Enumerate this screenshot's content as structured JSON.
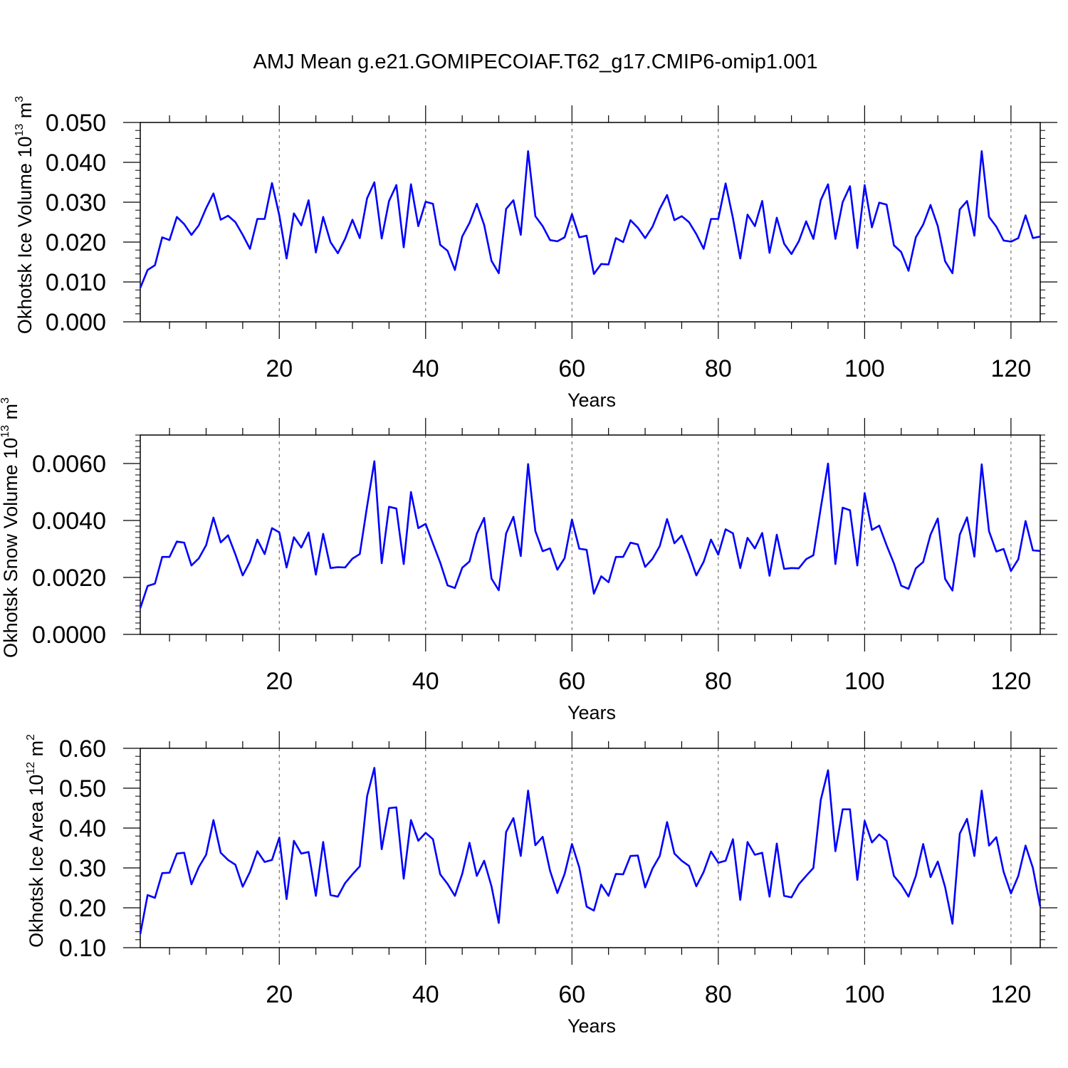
{
  "title": "AMJ Mean g.e21.GOMIPECOIAF.T62_g17.CMIP6-omip1.001",
  "colors": {
    "line": "#0000ff",
    "axis": "#000000",
    "grid": "#555555"
  },
  "chart_data": [
    {
      "type": "line",
      "ylabel_main": "Okhotsk Ice Volume 10",
      "ylabel_exp": "13",
      "ylabel_unit": " m",
      "ylabel_unit_exp": "3",
      "xlabel": "Years",
      "xlim": [
        1,
        124
      ],
      "ylim": [
        0.0,
        0.05
      ],
      "yticks": [
        0.0,
        0.01,
        0.02,
        0.03,
        0.04,
        0.05
      ],
      "yticklabels": [
        "0.000",
        "0.010",
        "0.020",
        "0.030",
        "0.040",
        "0.050"
      ],
      "yminor": 0.002,
      "xticks": [
        20,
        40,
        60,
        80,
        100,
        120
      ],
      "xticklabels": [
        "20",
        "40",
        "60",
        "80",
        "100",
        "120"
      ],
      "xminor": 5,
      "grid": "x-dashed",
      "series": [
        {
          "name": "ice_volume",
          "values": [
            0.0085,
            0.013,
            0.0142,
            0.0212,
            0.0205,
            0.0263,
            0.0245,
            0.0218,
            0.0242,
            0.0285,
            0.0322,
            0.0256,
            0.0266,
            0.025,
            0.0218,
            0.0183,
            0.0258,
            0.0258,
            0.0348,
            0.0267,
            0.0159,
            0.0272,
            0.0242,
            0.0305,
            0.0174,
            0.0263,
            0.02,
            0.0172,
            0.0208,
            0.0256,
            0.021,
            0.031,
            0.035,
            0.0209,
            0.0303,
            0.0343,
            0.0187,
            0.0345,
            0.024,
            0.0301,
            0.0296,
            0.0193,
            0.0178,
            0.013,
            0.0214,
            0.0248,
            0.0296,
            0.0243,
            0.0153,
            0.0122,
            0.0283,
            0.0305,
            0.0218,
            0.0428,
            0.0265,
            0.024,
            0.0205,
            0.0202,
            0.0212,
            0.027,
            0.0212,
            0.0216,
            0.012,
            0.0145,
            0.0144,
            0.021,
            0.02,
            0.0255,
            0.0236,
            0.021,
            0.0238,
            0.0283,
            0.0318,
            0.0255,
            0.0265,
            0.025,
            0.022,
            0.0183,
            0.0258,
            0.0258,
            0.0347,
            0.026,
            0.0159,
            0.0269,
            0.024,
            0.0303,
            0.0173,
            0.0261,
            0.0196,
            0.017,
            0.0202,
            0.0252,
            0.0208,
            0.0305,
            0.0345,
            0.0208,
            0.03,
            0.034,
            0.0185,
            0.0343,
            0.0237,
            0.0299,
            0.0294,
            0.0192,
            0.0175,
            0.0128,
            0.0212,
            0.0244,
            0.0293,
            0.024,
            0.0152,
            0.0122,
            0.0282,
            0.0303,
            0.0216,
            0.0428,
            0.0263,
            0.0239,
            0.0204,
            0.0201,
            0.021,
            0.0267,
            0.021,
            0.0214
          ]
        }
      ]
    },
    {
      "type": "line",
      "ylabel_main": "Okhotsk Snow Volume 10",
      "ylabel_exp": "13",
      "ylabel_unit": " m",
      "ylabel_unit_exp": "3",
      "xlabel": "Years",
      "xlim": [
        1,
        124
      ],
      "ylim": [
        0.0,
        0.007
      ],
      "yticks": [
        0.0,
        0.002,
        0.004,
        0.006
      ],
      "yticklabels": [
        "0.0000",
        "0.0020",
        "0.0040",
        "0.0060"
      ],
      "yminor": 0.0002,
      "xticks": [
        20,
        40,
        60,
        80,
        100,
        120
      ],
      "xticklabels": [
        "20",
        "40",
        "60",
        "80",
        "100",
        "120"
      ],
      "xminor": 5,
      "grid": "x-dashed",
      "series": [
        {
          "name": "snow_volume",
          "values": [
            0.00092,
            0.0017,
            0.00178,
            0.00272,
            0.00272,
            0.00326,
            0.00322,
            0.00242,
            0.00267,
            0.00313,
            0.0041,
            0.00323,
            0.00348,
            0.00281,
            0.00207,
            0.00255,
            0.00333,
            0.00282,
            0.00373,
            0.00358,
            0.00235,
            0.00341,
            0.00305,
            0.00358,
            0.0021,
            0.00353,
            0.00233,
            0.00236,
            0.00235,
            0.00266,
            0.00282,
            0.0045,
            0.00608,
            0.0025,
            0.00448,
            0.00442,
            0.00247,
            0.005,
            0.00373,
            0.00388,
            0.00319,
            0.00252,
            0.00172,
            0.00163,
            0.00234,
            0.00256,
            0.00354,
            0.00409,
            0.00196,
            0.00155,
            0.00354,
            0.00413,
            0.00275,
            0.00598,
            0.00363,
            0.00292,
            0.00302,
            0.00227,
            0.00268,
            0.00403,
            0.00301,
            0.00297,
            0.00143,
            0.00204,
            0.00183,
            0.00272,
            0.00272,
            0.00322,
            0.00316,
            0.00237,
            0.00265,
            0.0031,
            0.00405,
            0.0032,
            0.00347,
            0.00281,
            0.00207,
            0.00255,
            0.00333,
            0.0028,
            0.00369,
            0.00355,
            0.00233,
            0.00339,
            0.00302,
            0.00356,
            0.00206,
            0.0035,
            0.0023,
            0.00233,
            0.00232,
            0.00264,
            0.00278,
            0.00443,
            0.006,
            0.00247,
            0.00445,
            0.00436,
            0.00242,
            0.00496,
            0.00367,
            0.00382,
            0.00313,
            0.00249,
            0.00171,
            0.0016,
            0.00232,
            0.00254,
            0.0035,
            0.00407,
            0.00195,
            0.00154,
            0.0035,
            0.00411,
            0.00273,
            0.00597,
            0.00362,
            0.00291,
            0.003,
            0.00223,
            0.00264,
            0.00398,
            0.00295,
            0.00293
          ]
        }
      ]
    },
    {
      "type": "line",
      "ylabel_main": "Okhotsk Ice Area 10",
      "ylabel_exp": "12",
      "ylabel_unit": " m",
      "ylabel_unit_exp": "2",
      "xlabel": "Years",
      "xlim": [
        1,
        124
      ],
      "ylim": [
        0.1,
        0.6
      ],
      "yticks": [
        0.1,
        0.2,
        0.3,
        0.4,
        0.5,
        0.6
      ],
      "yticklabels": [
        "0.10",
        "0.20",
        "0.30",
        "0.40",
        "0.50",
        "0.60"
      ],
      "yminor": 0.02,
      "xticks": [
        20,
        40,
        60,
        80,
        100,
        120
      ],
      "xticklabels": [
        "20",
        "40",
        "60",
        "80",
        "100",
        "120"
      ],
      "xminor": 5,
      "grid": "x-dashed",
      "series": [
        {
          "name": "ice_area",
          "values": [
            0.134,
            0.232,
            0.225,
            0.287,
            0.288,
            0.336,
            0.338,
            0.259,
            0.302,
            0.333,
            0.42,
            0.338,
            0.32,
            0.308,
            0.253,
            0.29,
            0.342,
            0.315,
            0.32,
            0.376,
            0.222,
            0.368,
            0.336,
            0.34,
            0.23,
            0.365,
            0.232,
            0.228,
            0.262,
            0.284,
            0.304,
            0.48,
            0.551,
            0.347,
            0.45,
            0.452,
            0.273,
            0.42,
            0.368,
            0.388,
            0.372,
            0.284,
            0.26,
            0.23,
            0.285,
            0.363,
            0.28,
            0.318,
            0.254,
            0.162,
            0.39,
            0.425,
            0.33,
            0.494,
            0.357,
            0.378,
            0.293,
            0.237,
            0.285,
            0.36,
            0.301,
            0.203,
            0.193,
            0.258,
            0.23,
            0.285,
            0.284,
            0.33,
            0.331,
            0.251,
            0.298,
            0.33,
            0.415,
            0.336,
            0.318,
            0.305,
            0.254,
            0.29,
            0.341,
            0.313,
            0.318,
            0.372,
            0.22,
            0.365,
            0.333,
            0.338,
            0.228,
            0.361,
            0.23,
            0.226,
            0.259,
            0.28,
            0.3,
            0.47,
            0.545,
            0.342,
            0.447,
            0.447,
            0.27,
            0.418,
            0.364,
            0.384,
            0.368,
            0.28,
            0.258,
            0.228,
            0.28,
            0.36,
            0.277,
            0.316,
            0.252,
            0.16,
            0.386,
            0.423,
            0.33,
            0.494,
            0.356,
            0.377,
            0.29,
            0.236,
            0.28,
            0.356,
            0.3,
            0.203
          ]
        }
      ]
    }
  ]
}
